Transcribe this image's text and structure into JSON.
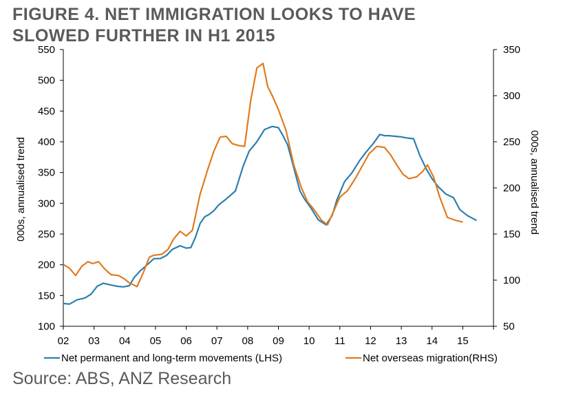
{
  "title_line1": "FIGURE 4. NET IMMIGRATION LOOKS TO HAVE",
  "title_line2": "SLOWED FURTHER IN H1 2015",
  "source": "Source: ABS, ANZ Research",
  "colors": {
    "lhs": "#2a7fae",
    "rhs": "#e07a1f",
    "axis": "#000000",
    "title": "#5a5a5a"
  },
  "chart_data": {
    "type": "line",
    "xlabel": "",
    "ylabel": "000s, annualised trend",
    "y2label": "000s, annualised trend",
    "ylim": [
      100,
      550
    ],
    "y2lim": [
      50,
      350
    ],
    "xlim": [
      2002,
      2016
    ],
    "yticks": [
      100,
      150,
      200,
      250,
      300,
      350,
      400,
      450,
      500,
      550
    ],
    "y2ticks": [
      50,
      100,
      150,
      200,
      250,
      300,
      350
    ],
    "xtick_labels": [
      "02",
      "03",
      "04",
      "05",
      "06",
      "07",
      "08",
      "09",
      "10",
      "11",
      "12",
      "13",
      "14",
      "15"
    ],
    "grid": false,
    "legend_position": "bottom",
    "series": [
      {
        "name": "Net permanent and long-term movements (LHS)",
        "axis": "left",
        "x": [
          2002.0,
          2002.2,
          2002.45,
          2002.7,
          2002.9,
          2003.1,
          2003.3,
          2003.55,
          2003.75,
          2003.95,
          2004.15,
          2004.3,
          2004.5,
          2004.75,
          2004.95,
          2005.15,
          2005.35,
          2005.55,
          2005.8,
          2006.0,
          2006.15,
          2006.3,
          2006.45,
          2006.6,
          2006.75,
          2006.9,
          2007.05,
          2007.3,
          2007.6,
          2007.85,
          2008.05,
          2008.3,
          2008.55,
          2008.8,
          2009.0,
          2009.15,
          2009.3,
          2009.5,
          2009.7,
          2009.85,
          2010.05,
          2010.3,
          2010.55,
          2010.75,
          2010.9,
          2011.15,
          2011.4,
          2011.65,
          2011.85,
          2012.1,
          2012.3,
          2012.45,
          2012.6,
          2012.8,
          2013.0,
          2013.2,
          2013.4,
          2013.6,
          2013.8,
          2014.0,
          2014.2,
          2014.45,
          2014.7,
          2014.9,
          2015.15,
          2015.45
        ],
        "values": [
          137,
          136,
          143,
          146,
          152,
          165,
          170,
          167,
          165,
          164,
          166,
          179,
          190,
          201,
          210,
          210,
          215,
          225,
          231,
          227,
          228,
          245,
          267,
          278,
          282,
          288,
          297,
          307,
          320,
          360,
          385,
          400,
          420,
          425,
          423,
          410,
          395,
          358,
          320,
          307,
          293,
          273,
          265,
          280,
          305,
          335,
          350,
          370,
          383,
          398,
          412,
          410,
          410,
          409,
          408,
          406,
          405,
          378,
          357,
          340,
          327,
          315,
          309,
          290,
          280,
          272
        ]
      },
      {
        "name": "Net overseas migration(RHS)",
        "axis": "right",
        "x": [
          2002.0,
          2002.2,
          2002.4,
          2002.6,
          2002.8,
          2002.95,
          2003.15,
          2003.35,
          2003.55,
          2003.8,
          2004.0,
          2004.15,
          2004.4,
          2004.6,
          2004.8,
          2004.95,
          2005.2,
          2005.4,
          2005.6,
          2005.8,
          2006.0,
          2006.2,
          2006.45,
          2006.7,
          2006.9,
          2007.1,
          2007.3,
          2007.5,
          2007.7,
          2007.9,
          2008.1,
          2008.3,
          2008.5,
          2008.65,
          2008.8,
          2009.0,
          2009.25,
          2009.5,
          2009.75,
          2009.95,
          2010.15,
          2010.4,
          2010.6,
          2010.8,
          2011.0,
          2011.25,
          2011.5,
          2011.75,
          2011.95,
          2012.2,
          2012.45,
          2012.65,
          2012.85,
          2013.05,
          2013.25,
          2013.5,
          2013.7,
          2013.85,
          2014.05,
          2014.25,
          2014.5,
          2014.75,
          2015.0
        ],
        "values": [
          117,
          113,
          105,
          115,
          120,
          118,
          120,
          112,
          106,
          105,
          101,
          97,
          93,
          108,
          125,
          127,
          128,
          133,
          145,
          153,
          148,
          154,
          193,
          220,
          240,
          255,
          256,
          248,
          246,
          245,
          295,
          330,
          335,
          310,
          300,
          285,
          262,
          225,
          200,
          185,
          177,
          165,
          160,
          175,
          190,
          197,
          210,
          225,
          237,
          245,
          244,
          236,
          225,
          215,
          210,
          212,
          218,
          225,
          212,
          190,
          168,
          165,
          163
        ]
      }
    ]
  }
}
